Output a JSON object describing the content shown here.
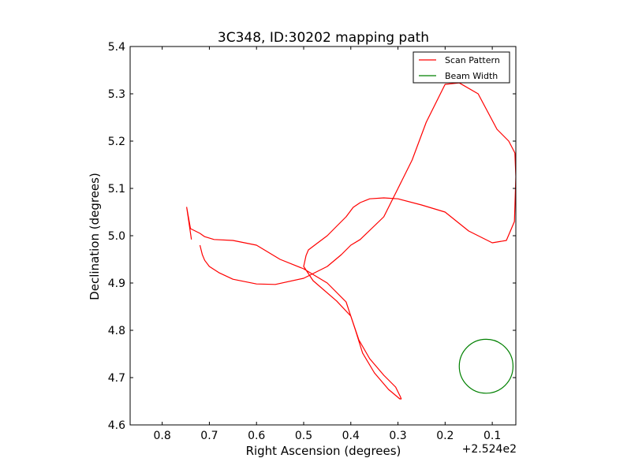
{
  "chart_data": {
    "type": "line",
    "title": "3C348, ID:30202 mapping path",
    "xlabel": "Right Ascension (degrees)",
    "ylabel": "Declination (degrees)",
    "x_offset_label": "+2.524e2",
    "x_offset": 252.4,
    "xlim": [
      0.868,
      0.05
    ],
    "ylim": [
      4.6,
      5.4
    ],
    "x_inverted": true,
    "x_ticks": [
      0.8,
      0.7,
      0.6,
      0.5,
      0.4,
      0.3,
      0.2,
      0.1
    ],
    "x_tick_labels": [
      "0.8",
      "0.7",
      "0.6",
      "0.5",
      "0.4",
      "0.3",
      "0.2",
      "0.1"
    ],
    "y_ticks": [
      4.6,
      4.7,
      4.8,
      4.9,
      5.0,
      5.1,
      5.2,
      5.3,
      5.4
    ],
    "y_tick_labels": [
      "4.6",
      "4.7",
      "4.8",
      "4.9",
      "5.0",
      "5.1",
      "5.2",
      "5.3",
      "5.4"
    ],
    "grid": false,
    "legend_position": "top-right",
    "series": [
      {
        "name": "Scan Pattern",
        "color": "#ff0000",
        "x": [
          0.72,
          0.715,
          0.71,
          0.7,
          0.68,
          0.65,
          0.6,
          0.56,
          0.5,
          0.45,
          0.42,
          0.4,
          0.38,
          0.33,
          0.3,
          0.27,
          0.24,
          0.2,
          0.17,
          0.13,
          0.09,
          0.065,
          0.052,
          0.05,
          0.053,
          0.07,
          0.1,
          0.15,
          0.2,
          0.25,
          0.3,
          0.33,
          0.36,
          0.38,
          0.395,
          0.41,
          0.43,
          0.45,
          0.47,
          0.49,
          0.495,
          0.5,
          0.48,
          0.43,
          0.4,
          0.383,
          0.36,
          0.33,
          0.305,
          0.295,
          0.293,
          0.296,
          0.32,
          0.35,
          0.375,
          0.39,
          0.41,
          0.45,
          0.5,
          0.55,
          0.6,
          0.65,
          0.69,
          0.71,
          0.72,
          0.74,
          0.748,
          0.738
        ],
        "y": [
          4.98,
          4.96,
          4.948,
          4.935,
          4.922,
          4.908,
          4.898,
          4.897,
          4.91,
          4.935,
          4.96,
          4.98,
          4.992,
          5.04,
          5.1,
          5.16,
          5.24,
          5.32,
          5.323,
          5.3,
          5.225,
          5.2,
          5.175,
          5.125,
          5.03,
          4.99,
          4.985,
          5.01,
          5.05,
          5.065,
          5.078,
          5.08,
          5.078,
          5.07,
          5.06,
          5.04,
          5.02,
          5.0,
          4.985,
          4.97,
          4.958,
          4.935,
          4.905,
          4.862,
          4.83,
          4.78,
          4.74,
          4.705,
          4.68,
          4.66,
          4.655,
          4.655,
          4.675,
          4.71,
          4.752,
          4.8,
          4.86,
          4.9,
          4.93,
          4.95,
          4.98,
          4.99,
          4.992,
          4.998,
          5.005,
          5.015,
          5.06,
          4.992
        ]
      },
      {
        "name": "Beam Width",
        "color": "#008000",
        "shape": "circle",
        "center": [
          0.113,
          4.724
        ],
        "radius": 0.057
      }
    ]
  }
}
